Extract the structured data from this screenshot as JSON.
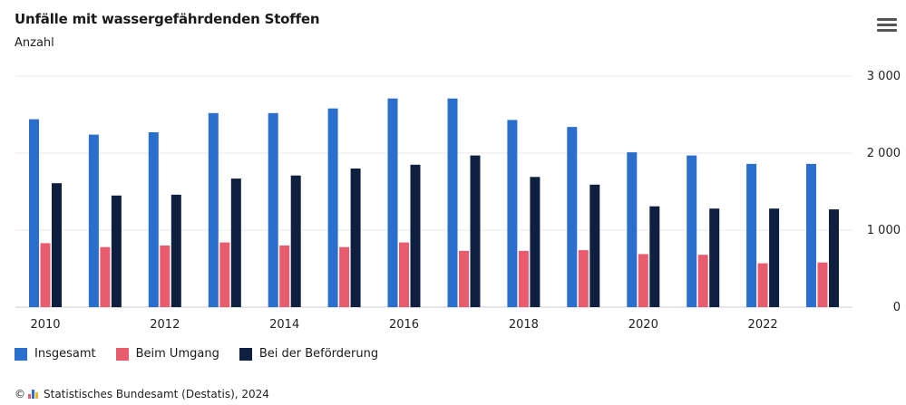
{
  "chart_data": {
    "type": "bar",
    "title": "Unfälle mit wassergefährdenden Stoffen",
    "subtitle": "Anzahl",
    "categories": [
      "2010",
      "2011",
      "2012",
      "2013",
      "2014",
      "2015",
      "2016",
      "2017",
      "2018",
      "2019",
      "2020",
      "2021",
      "2022",
      "2023"
    ],
    "x_tick_labels": [
      "2010",
      "",
      "2012",
      "",
      "2014",
      "",
      "2016",
      "",
      "2018",
      "",
      "2020",
      "",
      "2022",
      ""
    ],
    "series": [
      {
        "name": "Insgesamt",
        "color": "#2b6fce",
        "values": [
          2440,
          2240,
          2270,
          2520,
          2520,
          2580,
          2710,
          2710,
          2430,
          2340,
          2010,
          1970,
          1860,
          1860
        ]
      },
      {
        "name": "Beim Umgang",
        "color": "#e85c6e",
        "values": [
          830,
          780,
          800,
          840,
          800,
          780,
          840,
          730,
          730,
          740,
          690,
          680,
          570,
          580
        ]
      },
      {
        "name": "Bei der Beförderung",
        "color": "#0f1f40",
        "values": [
          1610,
          1450,
          1460,
          1670,
          1710,
          1800,
          1850,
          1970,
          1690,
          1590,
          1310,
          1280,
          1280,
          1270
        ]
      }
    ],
    "y_ticks": [
      0,
      1000,
      2000,
      3000
    ],
    "y_tick_labels": [
      "0",
      "1 000",
      "2 000",
      "3 000"
    ],
    "ylim": [
      0,
      3000
    ],
    "grid": true,
    "y_axis_position": "right",
    "legend_position": "bottom-left"
  },
  "header": {
    "menu_icon": "hamburger-menu-icon"
  },
  "footer": {
    "credit": "Statistisches Bundesamt (Destatis), 2024",
    "copyright_symbol": "©"
  }
}
